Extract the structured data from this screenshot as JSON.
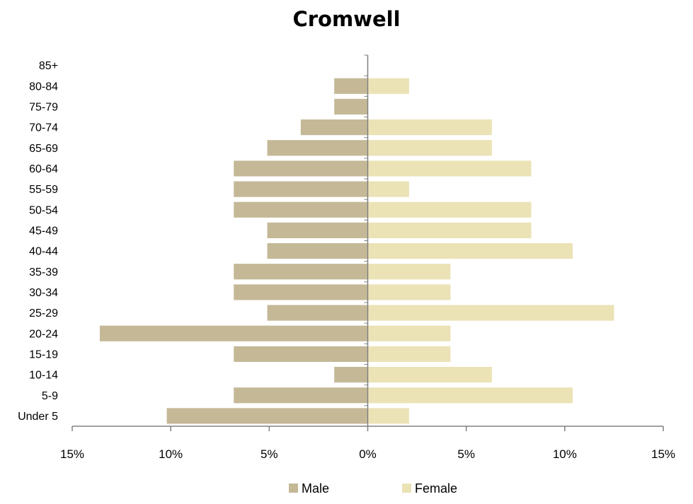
{
  "chart_data": {
    "type": "bar",
    "orientation": "horizontal",
    "title": "Cromwell",
    "categories": [
      "Under 5",
      "5-9",
      "10-14",
      "15-19",
      "20-24",
      "25-29",
      "30-34",
      "35-39",
      "40-44",
      "45-49",
      "50-54",
      "55-59",
      "60-64",
      "65-69",
      "70-74",
      "75-79",
      "80-84",
      "85+"
    ],
    "series": [
      {
        "name": "Male",
        "color": "#c4b897",
        "values": [
          10.2,
          6.8,
          1.7,
          6.8,
          13.6,
          5.1,
          6.8,
          6.8,
          5.1,
          5.1,
          6.8,
          6.8,
          6.8,
          5.1,
          3.4,
          1.7,
          1.7,
          0
        ]
      },
      {
        "name": "Female",
        "color": "#ebe2b6",
        "values": [
          2.1,
          10.4,
          6.3,
          4.2,
          4.2,
          12.5,
          4.2,
          4.2,
          10.4,
          8.3,
          8.3,
          2.1,
          8.3,
          6.3,
          6.3,
          0,
          2.1,
          0
        ]
      }
    ],
    "xlim": [
      -15,
      15
    ],
    "xticks": [
      -15,
      -10,
      -5,
      0,
      5,
      10,
      15
    ],
    "xtick_labels": [
      "15%",
      "10%",
      "5%",
      "0%",
      "5%",
      "10%",
      "15%"
    ],
    "legend_position": "bottom",
    "grid": false
  }
}
